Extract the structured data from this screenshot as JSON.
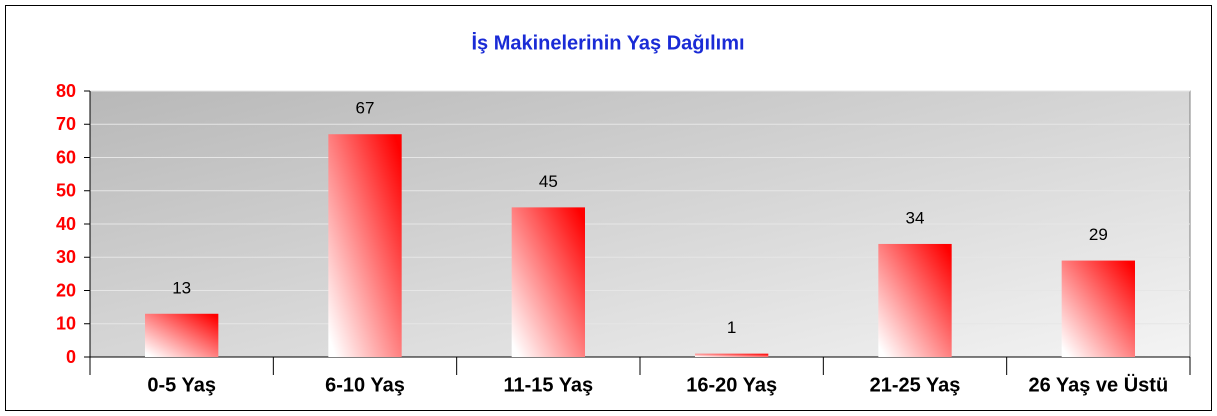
{
  "chart_data": {
    "type": "bar",
    "title": "İş Makinelerinin Yaş Dağılımı",
    "categories": [
      "0-5 Yaş",
      "6-10 Yaş",
      "11-15 Yaş",
      "16-20 Yaş",
      "21-25 Yaş",
      "26 Yaş ve Üstü"
    ],
    "values": [
      13,
      67,
      45,
      1,
      34,
      29
    ],
    "color": "#ff0000",
    "ylim": [
      0,
      80
    ],
    "yticks": [
      0,
      10,
      20,
      30,
      40,
      50,
      60,
      70,
      80
    ],
    "grid": true
  }
}
